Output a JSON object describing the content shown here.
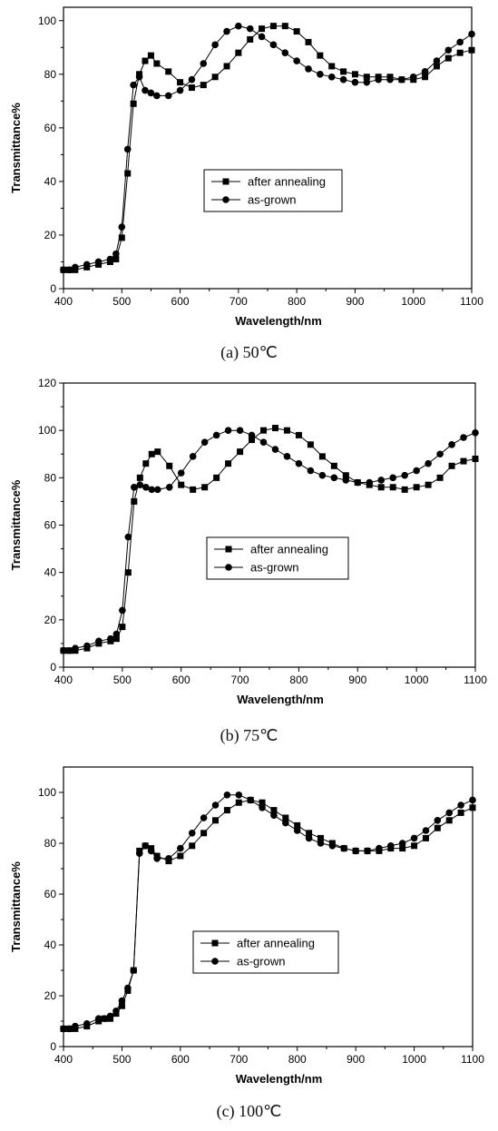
{
  "chart_data": [
    {
      "type": "line",
      "caption": "(a) 50℃",
      "xlabel": "Wavelength/nm",
      "ylabel": "Transmittance%",
      "xlim": [
        400,
        1100
      ],
      "ylim": [
        0,
        105
      ],
      "xticks": [
        400,
        500,
        600,
        700,
        800,
        900,
        1000,
        1100
      ],
      "xtick_labels": [
        "400",
        "500",
        "600",
        "700",
        "800",
        "900",
        "1000",
        "1100"
      ],
      "yticks": [
        0,
        20,
        40,
        60,
        80,
        100
      ],
      "ytick_labels": [
        "0",
        "20",
        "40",
        "60",
        "80",
        "100"
      ],
      "legend": "center",
      "series": [
        {
          "name": "after annealing",
          "marker": "square",
          "x": [
            400,
            410,
            420,
            440,
            460,
            480,
            490,
            500,
            510,
            520,
            530,
            540,
            550,
            560,
            580,
            600,
            620,
            640,
            660,
            680,
            700,
            720,
            740,
            760,
            780,
            800,
            820,
            840,
            860,
            880,
            900,
            920,
            940,
            960,
            980,
            1000,
            1020,
            1040,
            1060,
            1080,
            1100
          ],
          "y": [
            7,
            7,
            7,
            8,
            9,
            10,
            11,
            19,
            43,
            69,
            80,
            85,
            87,
            84,
            81,
            77,
            75,
            76,
            79,
            83,
            88,
            93,
            97,
            98,
            98,
            96,
            92,
            87,
            83,
            81,
            80,
            79,
            79,
            79,
            78,
            78,
            79,
            83,
            86,
            88,
            89
          ]
        },
        {
          "name": "as-grown",
          "marker": "circle",
          "x": [
            400,
            410,
            420,
            440,
            460,
            480,
            490,
            500,
            510,
            520,
            530,
            540,
            550,
            560,
            580,
            600,
            620,
            640,
            660,
            680,
            700,
            720,
            740,
            760,
            780,
            800,
            820,
            840,
            860,
            880,
            900,
            920,
            940,
            960,
            980,
            1000,
            1020,
            1040,
            1060,
            1080,
            1100
          ],
          "y": [
            7,
            7,
            8,
            9,
            10,
            11,
            13,
            23,
            52,
            76,
            79,
            74,
            73,
            72,
            72,
            74,
            78,
            84,
            91,
            96,
            98,
            97,
            94,
            91,
            88,
            85,
            82,
            80,
            79,
            78,
            77,
            77,
            78,
            78,
            78,
            79,
            81,
            85,
            89,
            92,
            95
          ]
        }
      ]
    },
    {
      "type": "line",
      "caption": "(b) 75℃",
      "xlabel": "Wavelength/nm",
      "ylabel": "Transmittance%",
      "xlim": [
        400,
        1100
      ],
      "ylim": [
        0,
        120
      ],
      "xticks": [
        400,
        500,
        600,
        700,
        800,
        900,
        1000,
        1100
      ],
      "xtick_labels": [
        "400",
        "500",
        "600",
        "700",
        "800",
        "900",
        "1000",
        "1100"
      ],
      "yticks": [
        0,
        20,
        40,
        60,
        80,
        100,
        120
      ],
      "ytick_labels": [
        "0",
        "20",
        "40",
        "60",
        "80",
        "100",
        "120"
      ],
      "legend": "center",
      "series": [
        {
          "name": "after annealing",
          "marker": "square",
          "x": [
            400,
            410,
            420,
            440,
            460,
            480,
            490,
            500,
            510,
            520,
            530,
            540,
            550,
            560,
            580,
            600,
            620,
            640,
            660,
            680,
            700,
            720,
            740,
            760,
            780,
            800,
            820,
            840,
            860,
            880,
            900,
            920,
            940,
            960,
            980,
            1000,
            1020,
            1040,
            1060,
            1080,
            1100
          ],
          "y": [
            7,
            7,
            7,
            8,
            10,
            11,
            12,
            17,
            40,
            70,
            80,
            86,
            90,
            91,
            85,
            77,
            75,
            76,
            80,
            86,
            91,
            96,
            100,
            101,
            100,
            98,
            94,
            89,
            85,
            81,
            78,
            77,
            76,
            76,
            75,
            76,
            77,
            80,
            85,
            87,
            88
          ]
        },
        {
          "name": "as-grown",
          "marker": "circle",
          "x": [
            400,
            410,
            420,
            440,
            460,
            480,
            490,
            500,
            510,
            520,
            530,
            540,
            550,
            560,
            580,
            600,
            620,
            640,
            660,
            680,
            700,
            720,
            740,
            760,
            780,
            800,
            820,
            840,
            860,
            880,
            900,
            920,
            940,
            960,
            980,
            1000,
            1020,
            1040,
            1060,
            1080,
            1100
          ],
          "y": [
            7,
            7,
            8,
            9,
            11,
            12,
            14,
            24,
            55,
            76,
            77,
            76,
            75,
            75,
            76,
            82,
            89,
            95,
            98,
            100,
            100,
            98,
            95,
            92,
            89,
            86,
            83,
            81,
            80,
            79,
            78,
            78,
            79,
            80,
            81,
            83,
            86,
            90,
            94,
            97,
            99
          ]
        }
      ]
    },
    {
      "type": "line",
      "caption": "(c) 100℃",
      "xlabel": "Wavelength/nm",
      "ylabel": "Transmittance%",
      "xlim": [
        400,
        1100
      ],
      "ylim": [
        0,
        110
      ],
      "xticks": [
        400,
        500,
        600,
        700,
        800,
        900,
        1000,
        1100
      ],
      "xtick_labels": [
        "400",
        "500",
        "600",
        "700",
        "800",
        "900",
        "1000",
        "1100"
      ],
      "yticks": [
        0,
        20,
        40,
        60,
        80,
        100
      ],
      "ytick_labels": [
        "0",
        "20",
        "40",
        "60",
        "80",
        "100"
      ],
      "legend": "center",
      "series": [
        {
          "name": "after annealing",
          "marker": "square",
          "x": [
            400,
            410,
            420,
            440,
            460,
            470,
            480,
            490,
            500,
            510,
            520,
            530,
            540,
            550,
            560,
            580,
            600,
            620,
            640,
            660,
            680,
            700,
            720,
            740,
            760,
            780,
            800,
            820,
            840,
            860,
            880,
            900,
            920,
            940,
            960,
            980,
            1000,
            1020,
            1040,
            1060,
            1080,
            1100
          ],
          "y": [
            7,
            7,
            7,
            8,
            10,
            11,
            11,
            13,
            16,
            22,
            30,
            77,
            79,
            78,
            75,
            73,
            75,
            79,
            84,
            89,
            93,
            96,
            97,
            96,
            93,
            90,
            87,
            84,
            82,
            80,
            78,
            77,
            77,
            77,
            78,
            78,
            79,
            82,
            86,
            89,
            92,
            94
          ]
        },
        {
          "name": "as-grown",
          "marker": "circle",
          "x": [
            400,
            410,
            420,
            440,
            460,
            470,
            480,
            490,
            500,
            510,
            520,
            530,
            540,
            550,
            560,
            580,
            600,
            620,
            640,
            660,
            680,
            700,
            720,
            740,
            760,
            780,
            800,
            820,
            840,
            860,
            880,
            900,
            920,
            940,
            960,
            980,
            1000,
            1020,
            1040,
            1060,
            1080,
            1100
          ],
          "y": [
            7,
            7,
            8,
            9,
            11,
            11,
            12,
            14,
            18,
            23,
            30,
            76,
            79,
            77,
            74,
            74,
            78,
            84,
            90,
            95,
            99,
            99,
            97,
            94,
            91,
            88,
            85,
            82,
            80,
            79,
            78,
            77,
            77,
            78,
            79,
            80,
            82,
            85,
            89,
            92,
            95,
            97
          ]
        }
      ]
    }
  ]
}
